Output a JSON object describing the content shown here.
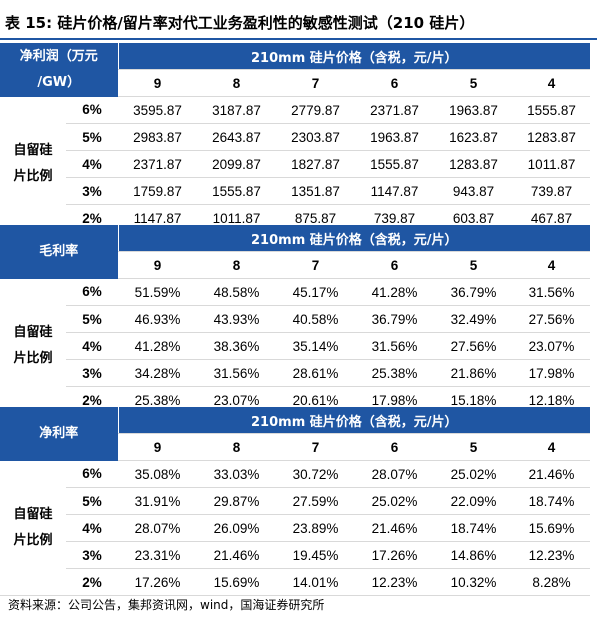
{
  "title": "表 15:  硅片价格/留片率对代工业务盈利性的敏感性测试（210 硅片）",
  "price_header": "210mm 硅片价格（含税，元/片）",
  "price_columns": [
    "9",
    "8",
    "7",
    "6",
    "5",
    "4"
  ],
  "row_group_label_line1": "自留硅",
  "row_group_label_line2": "片比例",
  "row_labels": [
    "6%",
    "5%",
    "4%",
    "3%",
    "2%"
  ],
  "sections": [
    {
      "corner_line1": "净利润（万元",
      "corner_line2": "/GW）",
      "rows": [
        [
          "3595.87",
          "3187.87",
          "2779.87",
          "2371.87",
          "1963.87",
          "1555.87"
        ],
        [
          "2983.87",
          "2643.87",
          "2303.87",
          "1963.87",
          "1623.87",
          "1283.87"
        ],
        [
          "2371.87",
          "2099.87",
          "1827.87",
          "1555.87",
          "1283.87",
          "1011.87"
        ],
        [
          "1759.87",
          "1555.87",
          "1351.87",
          "1147.87",
          "943.87",
          "739.87"
        ],
        [
          "1147.87",
          "1011.87",
          "875.87",
          "739.87",
          "603.87",
          "467.87"
        ]
      ]
    },
    {
      "corner_line1": "毛利率",
      "corner_line2": "",
      "rows": [
        [
          "51.59%",
          "48.58%",
          "45.17%",
          "41.28%",
          "36.79%",
          "31.56%"
        ],
        [
          "46.93%",
          "43.93%",
          "40.58%",
          "36.79%",
          "32.49%",
          "27.56%"
        ],
        [
          "41.28%",
          "38.36%",
          "35.14%",
          "31.56%",
          "27.56%",
          "23.07%"
        ],
        [
          "34.28%",
          "31.56%",
          "28.61%",
          "25.38%",
          "21.86%",
          "17.98%"
        ],
        [
          "25.38%",
          "23.07%",
          "20.61%",
          "17.98%",
          "15.18%",
          "12.18%"
        ]
      ]
    },
    {
      "corner_line1": "净利率",
      "corner_line2": "",
      "rows": [
        [
          "35.08%",
          "33.03%",
          "30.72%",
          "28.07%",
          "25.02%",
          "21.46%"
        ],
        [
          "31.91%",
          "29.87%",
          "27.59%",
          "25.02%",
          "22.09%",
          "18.74%"
        ],
        [
          "28.07%",
          "26.09%",
          "23.89%",
          "21.46%",
          "18.74%",
          "15.69%"
        ],
        [
          "23.31%",
          "21.46%",
          "19.45%",
          "17.26%",
          "14.86%",
          "12.23%"
        ],
        [
          "17.26%",
          "15.69%",
          "14.01%",
          "12.23%",
          "10.32%",
          "8.28%"
        ]
      ]
    }
  ],
  "source": "资料来源：公司公告，集邦资讯网，wind，国海证券研究所",
  "colors": {
    "header_bg": "#1f56a3",
    "header_text": "#ffffff",
    "row_rule": "#d9d9d9"
  }
}
